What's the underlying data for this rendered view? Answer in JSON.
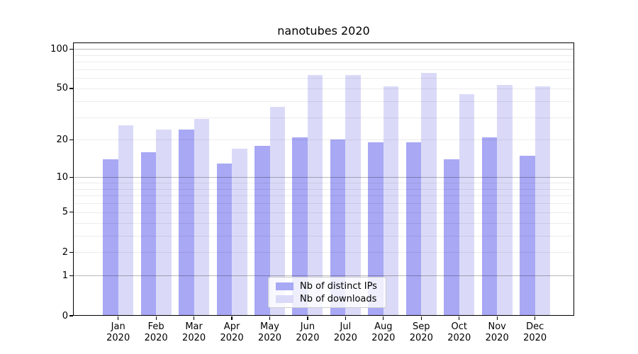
{
  "chart_data": {
    "type": "bar",
    "title": "nanotubes 2020",
    "scale": "log1p",
    "grid": true,
    "legend_position": "lower center",
    "categories": [
      "Jan",
      "Feb",
      "Mar",
      "Apr",
      "May",
      "Jun",
      "Jul",
      "Aug",
      "Sep",
      "Oct",
      "Nov",
      "Dec"
    ],
    "year_label": "2020",
    "series": [
      {
        "name": "Nb of distinct IPs",
        "color": "#a8a8f5",
        "values": [
          14,
          16,
          24,
          13,
          18,
          21,
          20,
          19,
          19,
          14,
          21,
          15
        ]
      },
      {
        "name": "Nb of downloads",
        "color": "#dadaf8",
        "values": [
          26,
          24,
          29,
          17,
          36,
          63,
          63,
          52,
          66,
          45,
          53,
          52
        ]
      }
    ],
    "yticks": [
      0,
      1,
      2,
      5,
      10,
      20,
      50,
      100
    ],
    "major_gridlines": [
      1,
      10,
      100
    ],
    "minor_gridlines": [
      2,
      3,
      4,
      5,
      6,
      7,
      8,
      9,
      20,
      30,
      40,
      50,
      60,
      70,
      80,
      90
    ],
    "ylim": [
      0,
      112
    ]
  }
}
